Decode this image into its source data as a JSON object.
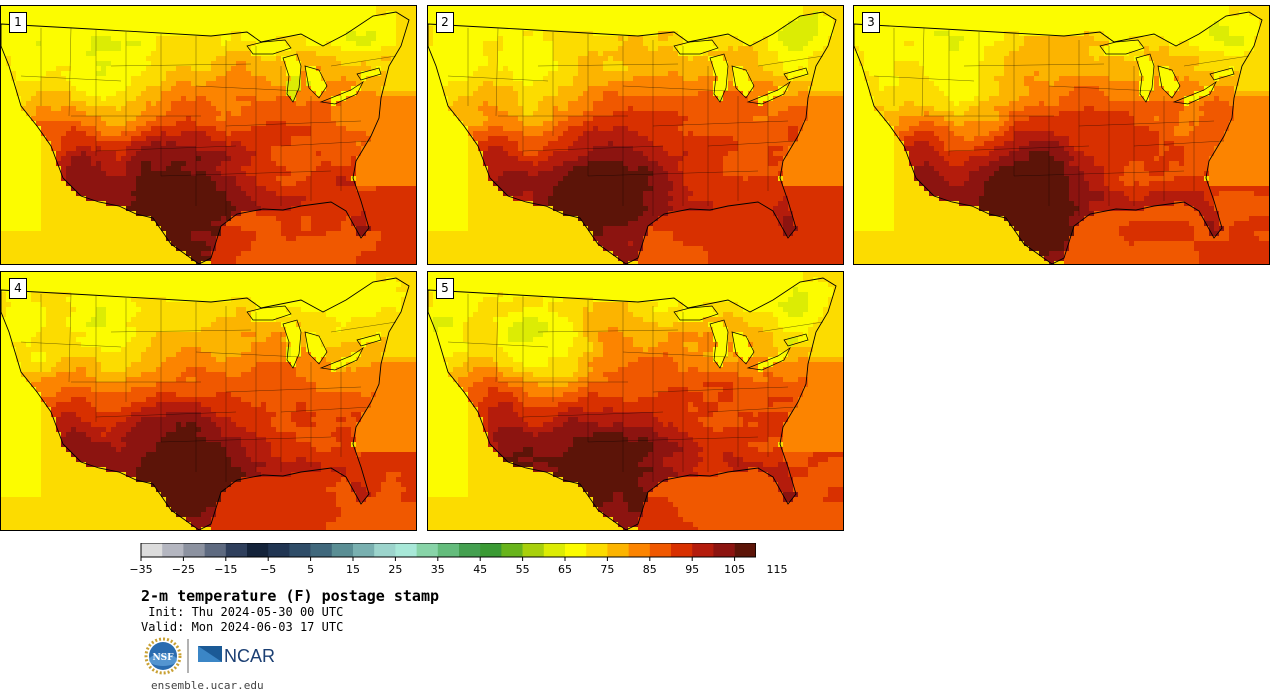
{
  "panels": [
    {
      "label": "1"
    },
    {
      "label": "2"
    },
    {
      "label": "3"
    },
    {
      "label": "4"
    },
    {
      "label": "5"
    }
  ],
  "colorbar": {
    "colors": [
      "#dcdcdc",
      "#b4b6c0",
      "#8c92a0",
      "#5e6a80",
      "#2f3f5c",
      "#14233a",
      "#213552",
      "#2f4d68",
      "#40687c",
      "#5a8e94",
      "#79b0b0",
      "#9cd4cc",
      "#a8e8d8",
      "#88d4a8",
      "#64bc7c",
      "#44a050",
      "#3a9a34",
      "#68b41c",
      "#a8d00c",
      "#dcec04",
      "#fcfc00",
      "#fcdc00",
      "#fcb400",
      "#fc8400",
      "#f05800",
      "#d83000",
      "#b41c0c",
      "#8c1410",
      "#5c1408"
    ],
    "tick_labels": [
      "-35",
      "-25",
      "-15",
      "-5",
      "5",
      "15",
      "25",
      "35",
      "45",
      "55",
      "65",
      "75",
      "85",
      "95",
      "105",
      "115"
    ]
  },
  "title": "2-m temperature (F) postage stamp",
  "init": " Init: Thu 2024-05-30 00 UTC",
  "valid": "Valid: Mon 2024-06-03 17 UTC",
  "logos": {
    "nsf": "NSF",
    "ncar": "NCAR"
  },
  "website": "ensemble.ucar.edu"
}
